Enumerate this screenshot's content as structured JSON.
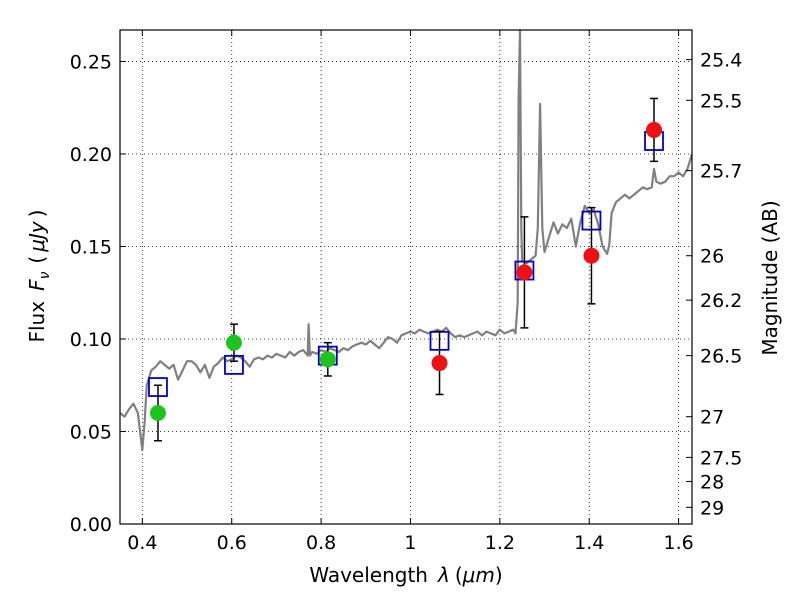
{
  "chart_data": {
    "type": "scatter",
    "xlabel": "Wavelength",
    "xlabel_symbol": "λ",
    "xlabel_unit": "μm",
    "ylabel": "Flux",
    "ylabel_symbol": "F",
    "ylabel_subscript": "ν",
    "ylabel_unit": "μJy",
    "y2label": "Magnitude (AB)",
    "xlim": [
      0.35,
      1.63
    ],
    "ylim": [
      0.0,
      0.267
    ],
    "x_ticks": [
      0.4,
      0.6,
      0.8,
      1.0,
      1.2,
      1.4,
      1.6
    ],
    "x_tick_labels": [
      "0.4",
      "0.6",
      "0.8",
      "1",
      "1.2",
      "1.4",
      "1.6"
    ],
    "y_ticks": [
      0.0,
      0.05,
      0.1,
      0.15,
      0.2,
      0.25
    ],
    "y_tick_labels": [
      "0.00",
      "0.05",
      "0.10",
      "0.15",
      "0.20",
      "0.25"
    ],
    "y2_ticks": [
      {
        "label": "25.4",
        "flux": 0.251
      },
      {
        "label": "25.5",
        "flux": 0.229
      },
      {
        "label": "25.7",
        "flux": 0.191
      },
      {
        "label": "26",
        "flux": 0.145
      },
      {
        "label": "26.2",
        "flux": 0.121
      },
      {
        "label": "26.5",
        "flux": 0.091
      },
      {
        "label": "27",
        "flux": 0.058
      },
      {
        "label": "27.5",
        "flux": 0.036
      },
      {
        "label": "28",
        "flux": 0.023
      },
      {
        "label": "29",
        "flux": 0.009
      }
    ],
    "grid": true,
    "series": [
      {
        "kind": "line",
        "color": "#808080",
        "points": [
          [
            0.35,
            0.06
          ],
          [
            0.36,
            0.058
          ],
          [
            0.37,
            0.062
          ],
          [
            0.38,
            0.065
          ],
          [
            0.39,
            0.06
          ],
          [
            0.4,
            0.04
          ],
          [
            0.405,
            0.055
          ],
          [
            0.41,
            0.075
          ],
          [
            0.42,
            0.083
          ],
          [
            0.43,
            0.085
          ],
          [
            0.44,
            0.088
          ],
          [
            0.45,
            0.086
          ],
          [
            0.46,
            0.084
          ],
          [
            0.47,
            0.086
          ],
          [
            0.48,
            0.078
          ],
          [
            0.49,
            0.083
          ],
          [
            0.5,
            0.088
          ],
          [
            0.51,
            0.088
          ],
          [
            0.52,
            0.086
          ],
          [
            0.53,
            0.082
          ],
          [
            0.54,
            0.086
          ],
          [
            0.55,
            0.079
          ],
          [
            0.56,
            0.085
          ],
          [
            0.57,
            0.087
          ],
          [
            0.58,
            0.09
          ],
          [
            0.59,
            0.088
          ],
          [
            0.6,
            0.089
          ],
          [
            0.61,
            0.091
          ],
          [
            0.62,
            0.09
          ],
          [
            0.63,
            0.088
          ],
          [
            0.64,
            0.085
          ],
          [
            0.65,
            0.089
          ],
          [
            0.66,
            0.09
          ],
          [
            0.67,
            0.089
          ],
          [
            0.68,
            0.091
          ],
          [
            0.69,
            0.09
          ],
          [
            0.7,
            0.092
          ],
          [
            0.71,
            0.091
          ],
          [
            0.72,
            0.09
          ],
          [
            0.73,
            0.093
          ],
          [
            0.74,
            0.091
          ],
          [
            0.75,
            0.093
          ],
          [
            0.76,
            0.094
          ],
          [
            0.77,
            0.091
          ],
          [
            0.772,
            0.108
          ],
          [
            0.775,
            0.091
          ],
          [
            0.78,
            0.093
          ],
          [
            0.79,
            0.092
          ],
          [
            0.8,
            0.094
          ],
          [
            0.81,
            0.093
          ],
          [
            0.82,
            0.095
          ],
          [
            0.83,
            0.094
          ],
          [
            0.84,
            0.093
          ],
          [
            0.85,
            0.095
          ],
          [
            0.86,
            0.094
          ],
          [
            0.87,
            0.096
          ],
          [
            0.88,
            0.097
          ],
          [
            0.89,
            0.098
          ],
          [
            0.9,
            0.097
          ],
          [
            0.91,
            0.099
          ],
          [
            0.92,
            0.097
          ],
          [
            0.93,
            0.095
          ],
          [
            0.94,
            0.098
          ],
          [
            0.95,
            0.101
          ],
          [
            0.96,
            0.1
          ],
          [
            0.97,
            0.098
          ],
          [
            0.98,
            0.102
          ],
          [
            0.99,
            0.103
          ],
          [
            1.0,
            0.104
          ],
          [
            1.01,
            0.103
          ],
          [
            1.02,
            0.105
          ],
          [
            1.03,
            0.104
          ],
          [
            1.04,
            0.103
          ],
          [
            1.05,
            0.104
          ],
          [
            1.06,
            0.105
          ],
          [
            1.07,
            0.104
          ],
          [
            1.08,
            0.106
          ],
          [
            1.09,
            0.103
          ],
          [
            1.1,
            0.101
          ],
          [
            1.11,
            0.102
          ],
          [
            1.12,
            0.101
          ],
          [
            1.13,
            0.102
          ],
          [
            1.14,
            0.103
          ],
          [
            1.15,
            0.104
          ],
          [
            1.16,
            0.102
          ],
          [
            1.17,
            0.104
          ],
          [
            1.18,
            0.103
          ],
          [
            1.19,
            0.102
          ],
          [
            1.2,
            0.105
          ],
          [
            1.21,
            0.103
          ],
          [
            1.22,
            0.104
          ],
          [
            1.23,
            0.105
          ],
          [
            1.235,
            0.103
          ],
          [
            1.24,
            0.12
          ],
          [
            1.242,
            0.23
          ],
          [
            1.245,
            0.267
          ],
          [
            1.248,
            0.16
          ],
          [
            1.25,
            0.142
          ],
          [
            1.26,
            0.141
          ],
          [
            1.27,
            0.143
          ],
          [
            1.28,
            0.145
          ],
          [
            1.285,
            0.16
          ],
          [
            1.29,
            0.227
          ],
          [
            1.295,
            0.16
          ],
          [
            1.3,
            0.147
          ],
          [
            1.31,
            0.155
          ],
          [
            1.32,
            0.163
          ],
          [
            1.33,
            0.157
          ],
          [
            1.34,
            0.162
          ],
          [
            1.35,
            0.16
          ],
          [
            1.36,
            0.165
          ],
          [
            1.37,
            0.15
          ],
          [
            1.38,
            0.163
          ],
          [
            1.39,
            0.172
          ],
          [
            1.4,
            0.168
          ],
          [
            1.41,
            0.17
          ],
          [
            1.42,
            0.162
          ],
          [
            1.43,
            0.15
          ],
          [
            1.44,
            0.146
          ],
          [
            1.445,
            0.151
          ],
          [
            1.45,
            0.168
          ],
          [
            1.46,
            0.174
          ],
          [
            1.47,
            0.176
          ],
          [
            1.48,
            0.178
          ],
          [
            1.49,
            0.176
          ],
          [
            1.5,
            0.178
          ],
          [
            1.51,
            0.18
          ],
          [
            1.52,
            0.182
          ],
          [
            1.53,
            0.181
          ],
          [
            1.54,
            0.182
          ],
          [
            1.545,
            0.192
          ],
          [
            1.55,
            0.185
          ],
          [
            1.56,
            0.184
          ],
          [
            1.57,
            0.185
          ],
          [
            1.58,
            0.188
          ],
          [
            1.59,
            0.188
          ],
          [
            1.6,
            0.19
          ],
          [
            1.61,
            0.188
          ],
          [
            1.62,
            0.192
          ],
          [
            1.63,
            0.2
          ]
        ]
      },
      {
        "kind": "open-squares",
        "color": "#0000cc",
        "points": [
          [
            0.435,
            0.074
          ],
          [
            0.605,
            0.086
          ],
          [
            0.815,
            0.091
          ],
          [
            1.065,
            0.099
          ],
          [
            1.255,
            0.137
          ],
          [
            1.405,
            0.164
          ],
          [
            1.545,
            0.207
          ]
        ]
      },
      {
        "kind": "filled-circles",
        "color": "#1ec41e",
        "points": [
          {
            "x": 0.435,
            "y": 0.06,
            "err": 0.015
          },
          {
            "x": 0.605,
            "y": 0.098,
            "err": 0.01
          },
          {
            "x": 0.815,
            "y": 0.089,
            "err": 0.009
          }
        ]
      },
      {
        "kind": "filled-circles",
        "color": "#ee1111",
        "points": [
          {
            "x": 1.065,
            "y": 0.087,
            "err": 0.017
          },
          {
            "x": 1.255,
            "y": 0.136,
            "err": 0.03
          },
          {
            "x": 1.405,
            "y": 0.145,
            "err": 0.026
          },
          {
            "x": 1.545,
            "y": 0.213,
            "err": 0.017
          }
        ]
      }
    ]
  }
}
